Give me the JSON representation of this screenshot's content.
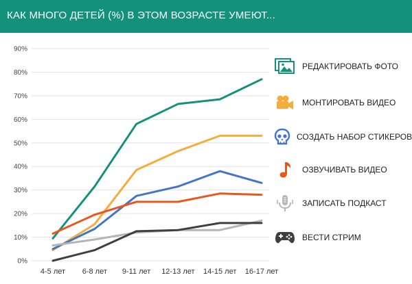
{
  "title": "КАК МНОГО ДЕТЕЙ (%) В ЭТОМ ВОЗРАСТЕ УМЕЮТ...",
  "colors": {
    "header": "#13917b",
    "grid": "#e2e2e2",
    "axis_text": "#444444"
  },
  "chart_data": {
    "type": "line",
    "categories": [
      "4-5 лет",
      "6-8 лет",
      "9-11 лет",
      "12-13 лет",
      "14-15 лет",
      "16-17 лет"
    ],
    "ylim": [
      0,
      90
    ],
    "yticks": [
      "0%",
      "10%",
      "20%",
      "30%",
      "40%",
      "50%",
      "60%",
      "70%",
      "80%",
      "90%"
    ],
    "grid": true,
    "legend_position": "right",
    "series": [
      {
        "name": "РЕДАКТИРОВАТЬ ФОТО",
        "color": "#13917b",
        "icon": "photo-frames-icon",
        "values": [
          9.5,
          31.5,
          58,
          66.5,
          68.5,
          77
        ]
      },
      {
        "name": "МОНТИРОВАТЬ ВИДЕО",
        "color": "#f4ad3d",
        "icon": "video-camera-icon",
        "values": [
          4.5,
          15.5,
          38.5,
          46.5,
          53,
          53
        ]
      },
      {
        "name": "СОЗДАТЬ НАБОР СТИКЕРОВ",
        "color": "#4274c8",
        "icon": "skull-icon",
        "values": [
          5,
          13.5,
          27.5,
          31.5,
          38,
          33
        ]
      },
      {
        "name": "ОЗВУЧИВАТЬ ВИДЕО",
        "color": "#e8571d",
        "icon": "music-note-icon",
        "values": [
          11.5,
          19.5,
          25,
          25,
          28.5,
          28
        ]
      },
      {
        "name": "ЗАПИСАТЬ ПОДКАСТ",
        "color": "#b5b5b5",
        "icon": "microphone-icon",
        "values": [
          6.5,
          9,
          12,
          13,
          13,
          17
        ]
      },
      {
        "name": "ВЕСТИ СТРИМ",
        "color": "#3f3f3f",
        "icon": "gamepad-icon",
        "values": [
          0,
          4.5,
          12.5,
          13,
          16,
          16
        ]
      }
    ]
  }
}
